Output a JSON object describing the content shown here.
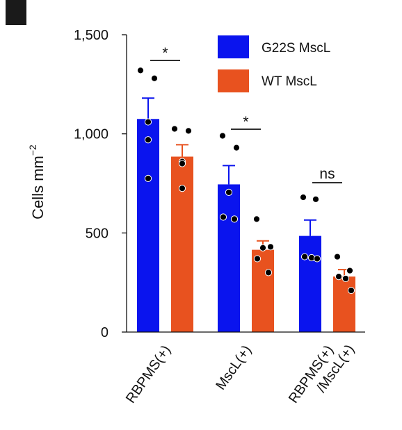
{
  "colors": {
    "g22s": "#0a14ee",
    "wt": "#e8521f",
    "err_g22s": "#0a14ee",
    "err_wt": "#e8521f",
    "dot": "#000000"
  },
  "chart_data": {
    "type": "bar",
    "ylabel": "Cells mm",
    "ylabel_sup": "−2",
    "ylim": [
      0,
      1500
    ],
    "yticks": [
      0,
      500,
      1000,
      1500
    ],
    "ytick_labels": [
      "0",
      "500",
      "1,000",
      "1,500"
    ],
    "categories": [
      "RBPMS(+)",
      "MscL(+)",
      "RBPMS(+)/MscL(+)"
    ],
    "category_lines": [
      [
        "RBPMS(+)"
      ],
      [
        "MscL(+)"
      ],
      [
        "RBPMS(+)",
        "/MscL(+)"
      ]
    ],
    "legend_position": "top-right",
    "series": [
      {
        "name": "G22S MscL",
        "color": "#0a14ee",
        "values": [
          1075,
          745,
          485
        ],
        "errors": [
          105,
          95,
          80
        ],
        "points": [
          [
            1320,
            1280,
            1060,
            970,
            775
          ],
          [
            990,
            930,
            705,
            580,
            570
          ],
          [
            680,
            670,
            380,
            375,
            370
          ]
        ]
      },
      {
        "name": "WT MscL",
        "color": "#e8521f",
        "values": [
          885,
          415,
          280
        ],
        "errors": [
          60,
          45,
          35
        ],
        "points": [
          [
            1025,
            1015,
            860,
            850,
            725
          ],
          [
            570,
            430,
            425,
            370,
            300
          ],
          [
            380,
            310,
            280,
            270,
            210
          ]
        ]
      }
    ],
    "significance": [
      "*",
      "*",
      "ns"
    ]
  }
}
